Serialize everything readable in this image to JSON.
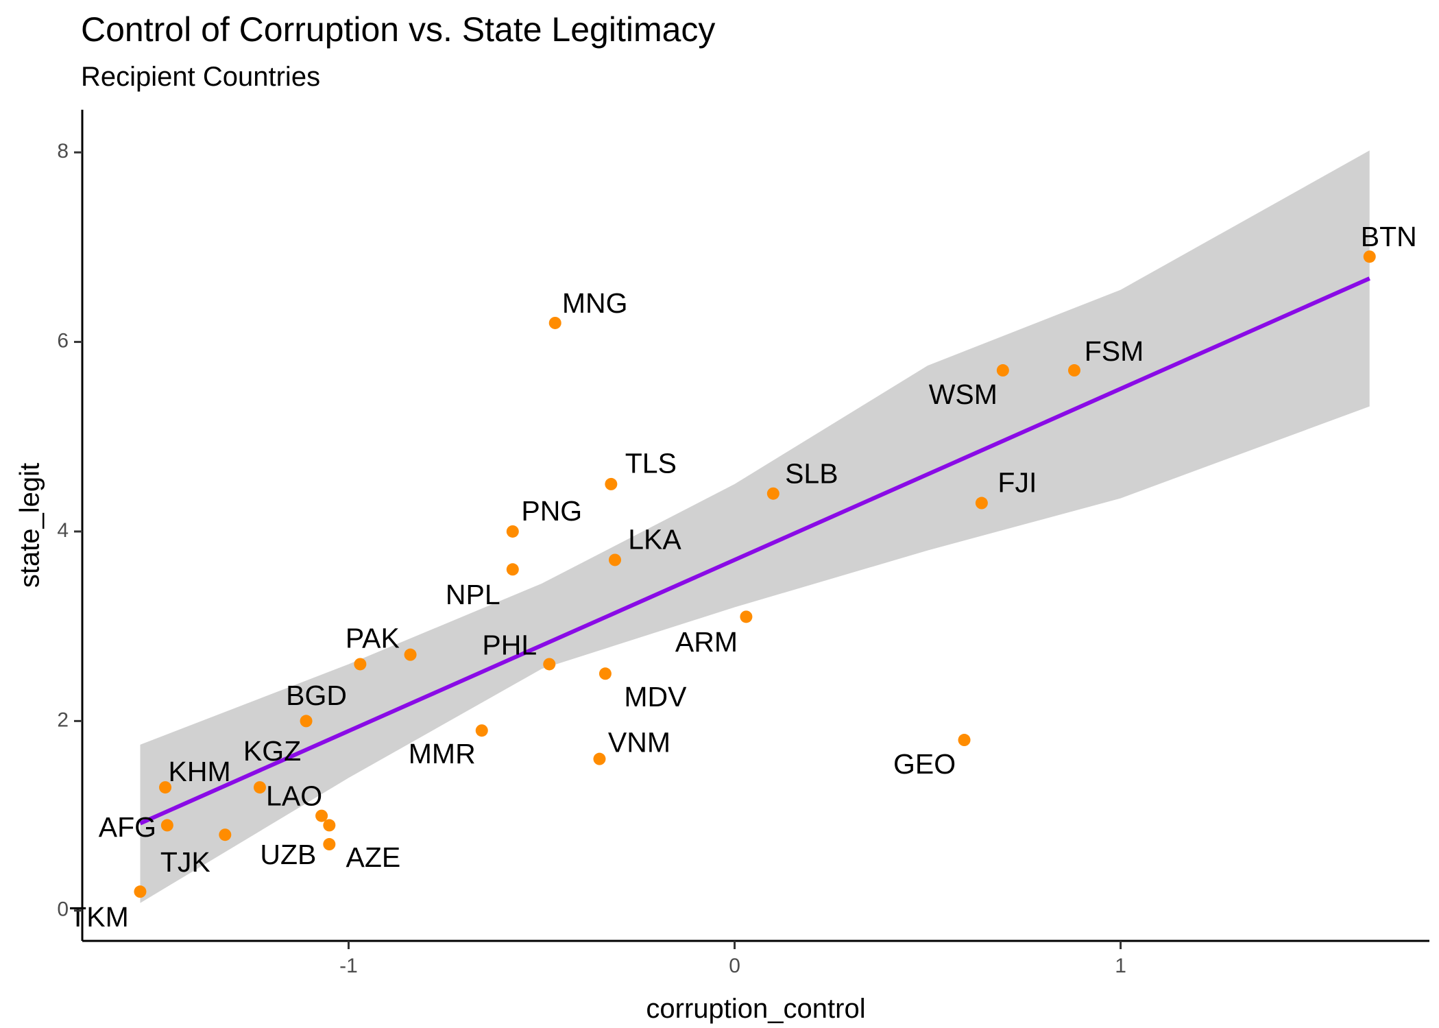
{
  "chart_data": {
    "type": "scatter",
    "title": "Control of Corruption vs. State Legitimacy",
    "subtitle": "Recipient Countries",
    "xlabel": "corruption_control",
    "ylabel": "state_legit",
    "xlim": [
      -1.69,
      1.8
    ],
    "ylim": [
      -0.32,
      8.45
    ],
    "x_ticks": [
      -1,
      0,
      1
    ],
    "y_ticks": [
      0,
      2,
      4,
      6,
      8
    ],
    "grid": false,
    "legend": "none",
    "point_color": "#FF8C00",
    "fit_line_color": "#8A0BE6",
    "band_color": "#BEBEBE",
    "points": [
      {
        "label": "AFG",
        "x": -1.47,
        "y": 0.9
      },
      {
        "label": "KHM",
        "x": -1.475,
        "y": 1.3
      },
      {
        "label": "TJK",
        "x": -1.32,
        "y": 0.8
      },
      {
        "label": "TKM",
        "x": -1.54,
        "y": 0.2
      },
      {
        "label": "KGZ",
        "x": -1.23,
        "y": 1.3
      },
      {
        "label": "LAO",
        "x": -1.07,
        "y": 1.0
      },
      {
        "label": "UZB",
        "x": -1.05,
        "y": 0.9
      },
      {
        "label": "AZE",
        "x": -1.05,
        "y": 0.7
      },
      {
        "label": "BGD",
        "x": -1.11,
        "y": 2.0
      },
      {
        "label": "PAK",
        "x": -0.97,
        "y": 2.6
      },
      {
        "label": "",
        "x": -0.84,
        "y": 2.7
      },
      {
        "label": "MMR",
        "x": -0.655,
        "y": 1.9
      },
      {
        "label": "PHL",
        "x": -0.48,
        "y": 2.6
      },
      {
        "label": "MDV",
        "x": -0.335,
        "y": 2.5
      },
      {
        "label": "VNM",
        "x": -0.35,
        "y": 1.6
      },
      {
        "label": "NPL",
        "x": -0.575,
        "y": 3.6
      },
      {
        "label": "PNG",
        "x": -0.575,
        "y": 4.0
      },
      {
        "label": "MNG",
        "x": -0.465,
        "y": 6.2
      },
      {
        "label": "TLS",
        "x": -0.32,
        "y": 4.5
      },
      {
        "label": "LKA",
        "x": -0.31,
        "y": 3.7
      },
      {
        "label": "ARM",
        "x": 0.03,
        "y": 3.1
      },
      {
        "label": "SLB",
        "x": 0.1,
        "y": 4.4
      },
      {
        "label": "GEO",
        "x": 0.595,
        "y": 1.8
      },
      {
        "label": "FJI",
        "x": 0.64,
        "y": 4.3
      },
      {
        "label": "WSM",
        "x": 0.695,
        "y": 5.7
      },
      {
        "label": "FSM",
        "x": 0.88,
        "y": 5.7
      },
      {
        "label": "BTN",
        "x": 1.645,
        "y": 6.9
      }
    ],
    "fit_line": {
      "x": [
        -1.54,
        1.645
      ],
      "y": [
        0.92,
        6.67
      ]
    },
    "confidence_band": {
      "x": [
        -1.54,
        -1.0,
        -0.5,
        0.0,
        0.5,
        1.0,
        1.645
      ],
      "upper": [
        1.75,
        2.6,
        3.45,
        4.5,
        5.75,
        6.55,
        8.02
      ],
      "lower": [
        0.08,
        1.4,
        2.55,
        3.2,
        3.8,
        4.35,
        5.32
      ]
    }
  }
}
